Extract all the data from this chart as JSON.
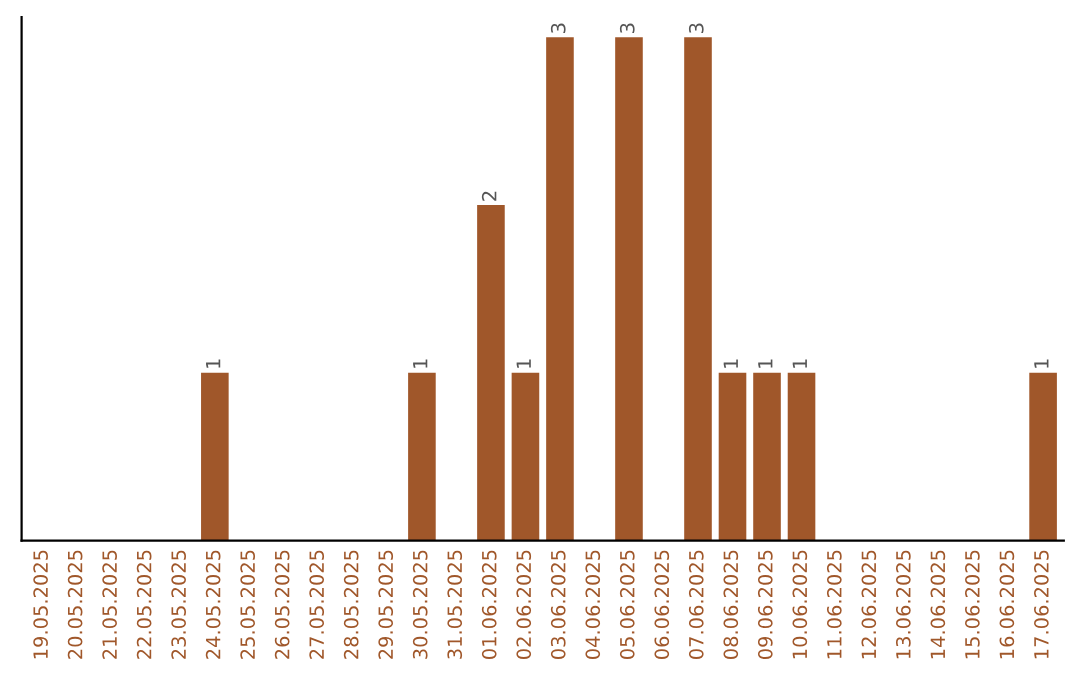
{
  "chart_data": {
    "type": "bar",
    "categories": [
      "19.05.2025",
      "20.05.2025",
      "21.05.2025",
      "22.05.2025",
      "23.05.2025",
      "24.05.2025",
      "25.05.2025",
      "26.05.2025",
      "27.05.2025",
      "28.05.2025",
      "29.05.2025",
      "30.05.2025",
      "31.05.2025",
      "01.06.2025",
      "02.06.2025",
      "03.06.2025",
      "04.06.2025",
      "05.06.2025",
      "06.06.2025",
      "07.06.2025",
      "08.06.2025",
      "09.06.2025",
      "10.06.2025",
      "11.06.2025",
      "12.06.2025",
      "13.06.2025",
      "14.06.2025",
      "15.06.2025",
      "16.06.2025",
      "17.06.2025"
    ],
    "values": [
      0,
      0,
      0,
      0,
      0,
      1,
      0,
      0,
      0,
      0,
      0,
      1,
      0,
      2,
      1,
      3,
      0,
      3,
      0,
      3,
      1,
      1,
      1,
      0,
      0,
      0,
      0,
      0,
      0,
      1
    ],
    "value_labels": [
      null,
      null,
      null,
      null,
      null,
      "1",
      null,
      null,
      null,
      null,
      null,
      "1",
      null,
      "2",
      "1",
      "3",
      null,
      "3",
      null,
      "3",
      "1",
      "1",
      "1",
      null,
      null,
      null,
      null,
      null,
      null,
      "1"
    ],
    "color": "#a0572a",
    "tick_labels": "x",
    "grid": false,
    "legend": false
  }
}
